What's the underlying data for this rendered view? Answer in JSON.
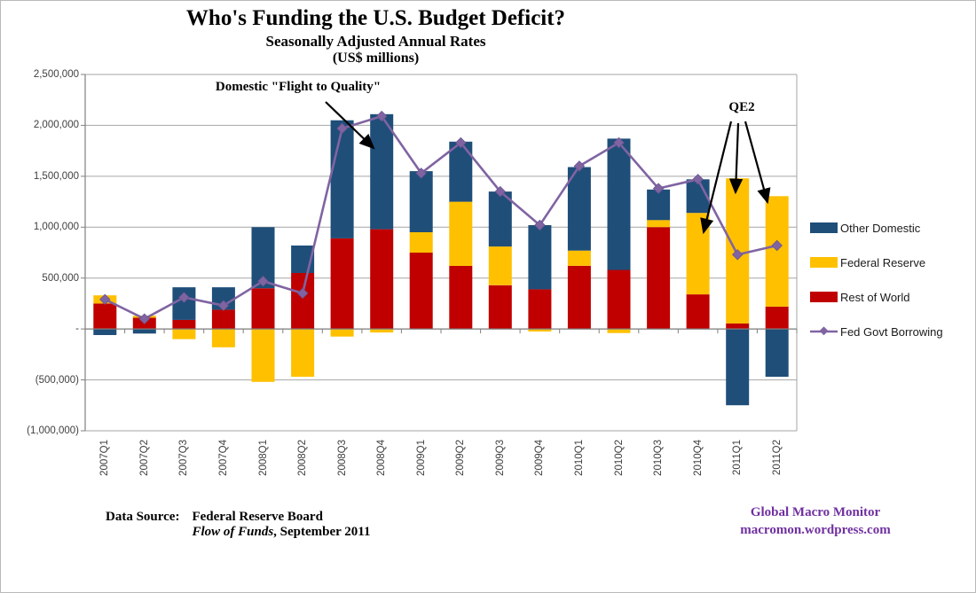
{
  "header": {
    "title": "Who's Funding the U.S. Budget Deficit?",
    "subtitle": "Seasonally Adjusted Annual Rates",
    "units": "(US$ millions)"
  },
  "chart_data": {
    "type": "bar",
    "subtype": "stacked-bars-with-line-overlay",
    "title": "Who's Funding the U.S. Budget Deficit?",
    "subtitle": "Seasonally Adjusted Annual Rates",
    "units_label": "(US$ millions)",
    "categories": [
      "2007Q1",
      "2007Q2",
      "2007Q3",
      "2007Q4",
      "2008Q1",
      "2008Q2",
      "2008Q3",
      "2008Q4",
      "2009Q1",
      "2009Q2",
      "2009Q3",
      "2009Q4",
      "2010Q1",
      "2010Q2",
      "2010Q3",
      "2010Q4",
      "2011Q1",
      "2011Q2"
    ],
    "series": [
      {
        "name": "Other Domestic",
        "type": "bar",
        "color": "#1F4E79",
        "values": [
          -60000,
          -45000,
          320000,
          220000,
          600000,
          270000,
          1160000,
          1130000,
          600000,
          590000,
          540000,
          630000,
          820000,
          1290000,
          300000,
          330000,
          -750000,
          -470000
        ]
      },
      {
        "name": "Federal Reserve",
        "type": "bar",
        "color": "#FFC000",
        "values": [
          80000,
          20000,
          -100000,
          -180000,
          -520000,
          -470000,
          -75000,
          -35000,
          200000,
          630000,
          380000,
          -25000,
          150000,
          -40000,
          70000,
          800000,
          1425000,
          1085000
        ]
      },
      {
        "name": "Rest of World",
        "type": "bar",
        "color": "#C00000",
        "values": [
          250000,
          110000,
          90000,
          190000,
          400000,
          550000,
          890000,
          980000,
          750000,
          620000,
          430000,
          390000,
          620000,
          580000,
          1000000,
          340000,
          55000,
          220000
        ]
      },
      {
        "name": "Fed Govt Borrowing",
        "type": "line",
        "color": "#8064A2",
        "marker": "diamond",
        "values": [
          290000,
          100000,
          310000,
          230000,
          470000,
          350000,
          1970000,
          2090000,
          1530000,
          1830000,
          1350000,
          1020000,
          1600000,
          1830000,
          1380000,
          1470000,
          730000,
          820000
        ]
      }
    ],
    "stack_order": [
      "Rest of World",
      "Federal Reserve",
      "Other Domestic"
    ],
    "ylim": [
      -1000000,
      2500000
    ],
    "ytick_step": 500000,
    "ytick_labels": [
      "2,500,000",
      "2,000,000",
      "1,500,000",
      "1,000,000",
      "500,000",
      "-",
      "(500,000)",
      "(1,000,000)"
    ],
    "grid": true,
    "legend_position": "right"
  },
  "annotations": {
    "flight_text": "Domestic \"Flight to Quality\"",
    "qe2_text": "QE2"
  },
  "footer": {
    "source_label": "Data Source:",
    "source_line1": "Federal Reserve Board",
    "source_line2_italic": "Flow of Funds",
    "source_line2_rest": ", September 2011",
    "brand_line1": "Global Macro Monitor",
    "brand_line2": "macromon.wordpress.com",
    "brand_color": "#7030A0"
  },
  "colors": {
    "gridline": "#A6A6A6",
    "axis": "#808080",
    "zero_axis": "#7F7F7F",
    "annotation_arrow": "#000000"
  }
}
